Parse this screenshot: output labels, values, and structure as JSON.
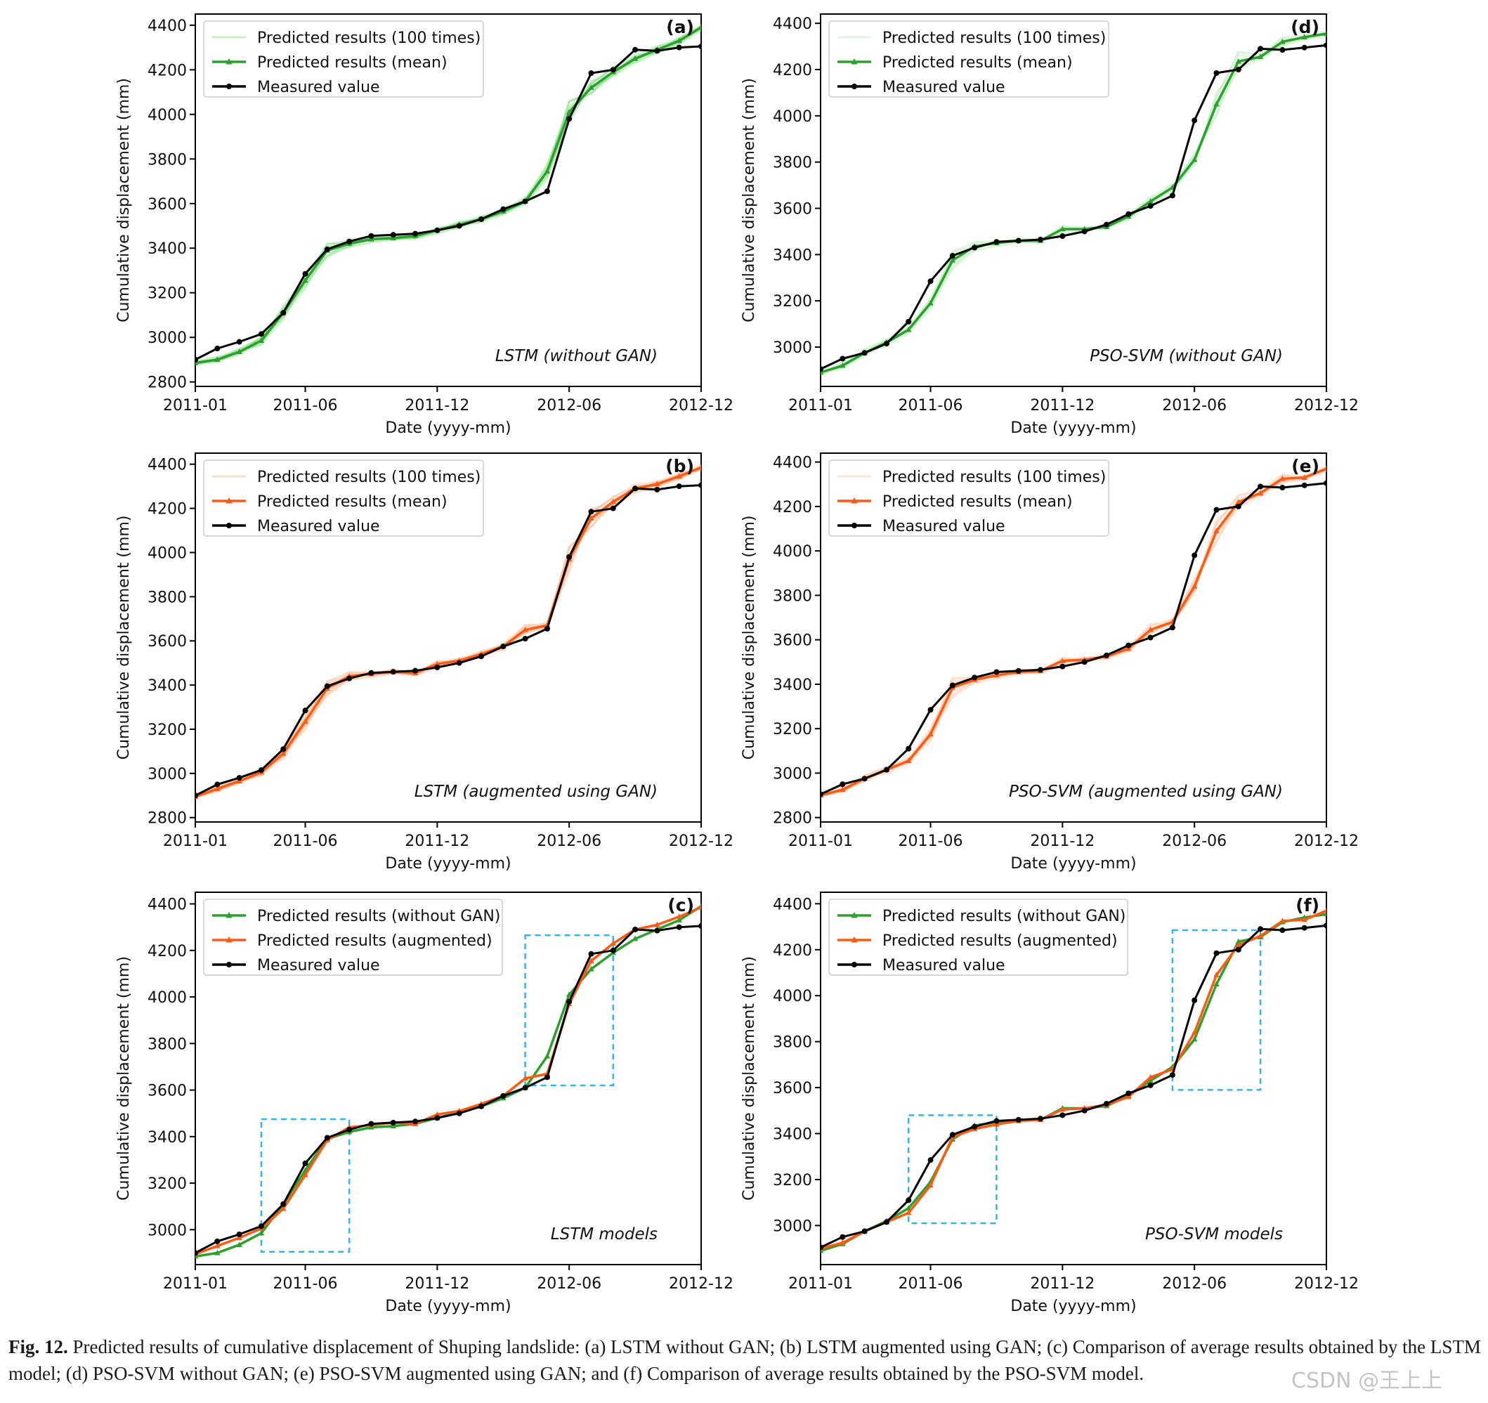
{
  "chart_data": [
    {
      "id": "a",
      "type": "line",
      "panel_label": "(a)",
      "title": "",
      "annotation": "LSTM (without GAN)",
      "xlabel": "Date (yyyy-mm)",
      "ylabel": "Cumulative displacement (mm)",
      "ylim": [
        2780,
        4450
      ],
      "yticks": [
        "2800",
        "3000",
        "3200",
        "3400",
        "3600",
        "3800",
        "4000",
        "4200",
        "4400"
      ],
      "xticks": [
        "2011-01",
        "2011-06",
        "2011-12",
        "2012-06",
        "2012-12"
      ],
      "x": [
        "2011-01",
        "2011-02",
        "2011-03",
        "2011-04",
        "2011-05",
        "2011-06",
        "2011-07",
        "2011-08",
        "2011-09",
        "2011-10",
        "2011-11",
        "2011-12",
        "2012-01",
        "2012-02",
        "2012-03",
        "2012-04",
        "2012-05",
        "2012-06",
        "2012-07",
        "2012-08",
        "2012-09",
        "2012-10",
        "2012-11",
        "2012-12"
      ],
      "legend_position": "top-left",
      "legend": [
        "Predicted results (100 times)",
        "Predicted results (mean)",
        "Measured value"
      ],
      "series": [
        {
          "name": "Predicted results (100 times)",
          "color": "#7ee07e",
          "values": [
            2885,
            2900,
            2935,
            2985,
            3110,
            3255,
            3390,
            3420,
            3440,
            3445,
            3455,
            3480,
            3505,
            3530,
            3565,
            3610,
            3745,
            4010,
            4120,
            4190,
            4250,
            4290,
            4330,
            4390
          ]
        },
        {
          "name": "Predicted results (mean)",
          "color": "#2ca02c",
          "values": [
            2885,
            2900,
            2935,
            2985,
            3110,
            3255,
            3390,
            3420,
            3440,
            3445,
            3455,
            3480,
            3505,
            3530,
            3565,
            3610,
            3745,
            4010,
            4120,
            4190,
            4250,
            4290,
            4330,
            4390
          ]
        },
        {
          "name": "Measured value",
          "color": "#000000",
          "values": [
            2900,
            2950,
            2980,
            3015,
            3110,
            3285,
            3395,
            3430,
            3455,
            3460,
            3465,
            3480,
            3500,
            3530,
            3575,
            3610,
            3655,
            3980,
            4185,
            4200,
            4290,
            4285,
            4300,
            4305
          ]
        }
      ]
    },
    {
      "id": "b",
      "type": "line",
      "panel_label": "(b)",
      "title": "",
      "annotation": "LSTM (augmented using GAN)",
      "xlabel": "Date (yyyy-mm)",
      "ylabel": "Cumulative displacement (mm)",
      "ylim": [
        2780,
        4450
      ],
      "yticks": [
        "2800",
        "3000",
        "3200",
        "3400",
        "3600",
        "3800",
        "4000",
        "4200",
        "4400"
      ],
      "xticks": [
        "2011-01",
        "2011-06",
        "2011-12",
        "2012-06",
        "2012-12"
      ],
      "x": [
        "2011-01",
        "2011-02",
        "2011-03",
        "2011-04",
        "2011-05",
        "2011-06",
        "2011-07",
        "2011-08",
        "2011-09",
        "2011-10",
        "2011-11",
        "2011-12",
        "2012-01",
        "2012-02",
        "2012-03",
        "2012-04",
        "2012-05",
        "2012-06",
        "2012-07",
        "2012-08",
        "2012-09",
        "2012-10",
        "2012-11",
        "2012-12"
      ],
      "legend_position": "top-left",
      "legend": [
        "Predicted results (100 times)",
        "Predicted results (mean)",
        "Measured value"
      ],
      "series": [
        {
          "name": "Predicted results (100 times)",
          "color": "#ffb38a",
          "values": [
            2895,
            2930,
            2965,
            3005,
            3090,
            3235,
            3385,
            3440,
            3450,
            3460,
            3455,
            3495,
            3510,
            3540,
            3575,
            3650,
            3670,
            3970,
            4155,
            4230,
            4290,
            4310,
            4345,
            4385
          ]
        },
        {
          "name": "Predicted results (mean)",
          "color": "#ff5a14",
          "values": [
            2895,
            2930,
            2965,
            3005,
            3090,
            3235,
            3385,
            3440,
            3450,
            3460,
            3455,
            3495,
            3510,
            3540,
            3575,
            3650,
            3670,
            3970,
            4155,
            4230,
            4290,
            4310,
            4345,
            4385
          ]
        },
        {
          "name": "Measured value",
          "color": "#000000",
          "values": [
            2900,
            2950,
            2980,
            3015,
            3110,
            3285,
            3395,
            3430,
            3455,
            3460,
            3465,
            3480,
            3500,
            3530,
            3575,
            3610,
            3655,
            3980,
            4185,
            4200,
            4290,
            4285,
            4300,
            4305
          ]
        }
      ]
    },
    {
      "id": "c",
      "type": "line",
      "panel_label": "(c)",
      "title": "",
      "annotation": "LSTM models",
      "xlabel": "Date (yyyy-mm)",
      "ylabel": "Cumulative displacement (mm)",
      "ylim": [
        2850,
        4450
      ],
      "yticks": [
        "3000",
        "3200",
        "3400",
        "3600",
        "3800",
        "4000",
        "4200",
        "4400"
      ],
      "xticks": [
        "2011-01",
        "2011-06",
        "2011-12",
        "2012-06",
        "2012-12"
      ],
      "x": [
        "2011-01",
        "2011-02",
        "2011-03",
        "2011-04",
        "2011-05",
        "2011-06",
        "2011-07",
        "2011-08",
        "2011-09",
        "2011-10",
        "2011-11",
        "2011-12",
        "2012-01",
        "2012-02",
        "2012-03",
        "2012-04",
        "2012-05",
        "2012-06",
        "2012-07",
        "2012-08",
        "2012-09",
        "2012-10",
        "2012-11",
        "2012-12"
      ],
      "legend_position": "top-left",
      "legend": [
        "Predicted results (without GAN)",
        "Predicted results (augmented)",
        "Measured value"
      ],
      "highlight_boxes": [
        {
          "x_from": "2011-04",
          "x_to": "2011-08",
          "y_from": 2905,
          "y_to": 3475
        },
        {
          "x_from": "2012-04",
          "x_to": "2012-08",
          "y_from": 3620,
          "y_to": 4265
        }
      ],
      "series": [
        {
          "name": "Predicted results (without GAN)",
          "color": "#2ca02c",
          "values": [
            2885,
            2900,
            2935,
            2985,
            3110,
            3255,
            3390,
            3420,
            3440,
            3445,
            3455,
            3480,
            3505,
            3530,
            3565,
            3610,
            3745,
            4010,
            4120,
            4190,
            4250,
            4290,
            4330,
            4390
          ]
        },
        {
          "name": "Predicted results (augmented)",
          "color": "#ff5a14",
          "values": [
            2895,
            2930,
            2965,
            3005,
            3090,
            3235,
            3385,
            3440,
            3450,
            3460,
            3455,
            3495,
            3510,
            3540,
            3575,
            3650,
            3670,
            3970,
            4155,
            4230,
            4290,
            4310,
            4345,
            4385
          ]
        },
        {
          "name": "Measured value",
          "color": "#000000",
          "values": [
            2900,
            2950,
            2980,
            3015,
            3110,
            3285,
            3395,
            3430,
            3455,
            3460,
            3465,
            3480,
            3500,
            3530,
            3575,
            3610,
            3655,
            3980,
            4185,
            4200,
            4290,
            4285,
            4300,
            4305
          ]
        }
      ]
    },
    {
      "id": "d",
      "type": "line",
      "panel_label": "(d)",
      "title": "",
      "annotation": "PSO-SVM (without GAN)",
      "xlabel": "Date (yyyy-mm)",
      "ylabel": "Cumulative displacement (mm)",
      "ylim": [
        2830,
        4440
      ],
      "yticks": [
        "3000",
        "3200",
        "3400",
        "3600",
        "3800",
        "4000",
        "4200",
        "4400"
      ],
      "xticks": [
        "2011-01",
        "2011-06",
        "2011-12",
        "2012-06",
        "2012-12"
      ],
      "x": [
        "2011-01",
        "2011-02",
        "2011-03",
        "2011-04",
        "2011-05",
        "2011-06",
        "2011-07",
        "2011-08",
        "2011-09",
        "2011-10",
        "2011-11",
        "2011-12",
        "2012-01",
        "2012-02",
        "2012-03",
        "2012-04",
        "2012-05",
        "2012-06",
        "2012-07",
        "2012-08",
        "2012-09",
        "2012-10",
        "2012-11",
        "2012-12"
      ],
      "legend_position": "top-left",
      "legend": [
        "Predicted results (100 times)",
        "Predicted results (mean)",
        "Measured value"
      ],
      "series": [
        {
          "name": "Predicted results (100 times)",
          "color": "#b9ecb9",
          "values": [
            2890,
            2920,
            2975,
            3020,
            3075,
            3190,
            3375,
            3435,
            3450,
            3460,
            3460,
            3510,
            3510,
            3520,
            3565,
            3630,
            3690,
            3810,
            4050,
            4235,
            4255,
            4320,
            4340,
            4355
          ]
        },
        {
          "name": "Predicted results (mean)",
          "color": "#2ca02c",
          "values": [
            2890,
            2920,
            2975,
            3020,
            3075,
            3190,
            3375,
            3435,
            3450,
            3460,
            3460,
            3510,
            3510,
            3520,
            3565,
            3630,
            3690,
            3810,
            4050,
            4235,
            4255,
            4320,
            4340,
            4355
          ]
        },
        {
          "name": "Measured value",
          "color": "#000000",
          "values": [
            2905,
            2950,
            2975,
            3015,
            3110,
            3285,
            3395,
            3430,
            3455,
            3460,
            3465,
            3480,
            3500,
            3530,
            3575,
            3610,
            3655,
            3980,
            4185,
            4200,
            4290,
            4285,
            4295,
            4305
          ]
        }
      ]
    },
    {
      "id": "e",
      "type": "line",
      "panel_label": "(e)",
      "title": "",
      "annotation": "PSO-SVM (augmented using GAN)",
      "xlabel": "Date (yyyy-mm)",
      "ylabel": "Cumulative displacement (mm)",
      "ylim": [
        2780,
        4440
      ],
      "yticks": [
        "2800",
        "3000",
        "3200",
        "3400",
        "3600",
        "3800",
        "4000",
        "4200",
        "4400"
      ],
      "xticks": [
        "2011-01",
        "2011-06",
        "2011-12",
        "2012-06",
        "2012-12"
      ],
      "x": [
        "2011-01",
        "2011-02",
        "2011-03",
        "2011-04",
        "2011-05",
        "2011-06",
        "2011-07",
        "2011-08",
        "2011-09",
        "2011-10",
        "2011-11",
        "2011-12",
        "2012-01",
        "2012-02",
        "2012-03",
        "2012-04",
        "2012-05",
        "2012-06",
        "2012-07",
        "2012-08",
        "2012-09",
        "2012-10",
        "2012-11",
        "2012-12"
      ],
      "legend_position": "top-left",
      "legend": [
        "Predicted results (100 times)",
        "Predicted results (mean)",
        "Measured value"
      ],
      "series": [
        {
          "name": "Predicted results (100 times)",
          "color": "#ffc6a4",
          "values": [
            2900,
            2925,
            2975,
            3015,
            3055,
            3175,
            3385,
            3420,
            3440,
            3455,
            3460,
            3505,
            3510,
            3525,
            3560,
            3645,
            3680,
            3840,
            4090,
            4220,
            4260,
            4325,
            4330,
            4370
          ]
        },
        {
          "name": "Predicted results (mean)",
          "color": "#ff5a14",
          "values": [
            2900,
            2925,
            2975,
            3015,
            3055,
            3175,
            3385,
            3420,
            3440,
            3455,
            3460,
            3505,
            3510,
            3525,
            3560,
            3645,
            3680,
            3840,
            4090,
            4220,
            4260,
            4325,
            4330,
            4370
          ]
        },
        {
          "name": "Measured value",
          "color": "#000000",
          "values": [
            2905,
            2950,
            2975,
            3015,
            3110,
            3285,
            3395,
            3430,
            3455,
            3460,
            3465,
            3480,
            3500,
            3530,
            3575,
            3610,
            3655,
            3980,
            4185,
            4200,
            4290,
            4285,
            4295,
            4305
          ]
        }
      ]
    },
    {
      "id": "f",
      "type": "line",
      "panel_label": "(f)",
      "title": "",
      "annotation": "PSO-SVM models",
      "xlabel": "Date (yyyy-mm)",
      "ylabel": "Cumulative displacement (mm)",
      "ylim": [
        2830,
        4450
      ],
      "yticks": [
        "3000",
        "3200",
        "3400",
        "3600",
        "3800",
        "4000",
        "4200",
        "4400"
      ],
      "xticks": [
        "2011-01",
        "2011-06",
        "2011-12",
        "2012-06",
        "2012-12"
      ],
      "x": [
        "2011-01",
        "2011-02",
        "2011-03",
        "2011-04",
        "2011-05",
        "2011-06",
        "2011-07",
        "2011-08",
        "2011-09",
        "2011-10",
        "2011-11",
        "2011-12",
        "2012-01",
        "2012-02",
        "2012-03",
        "2012-04",
        "2012-05",
        "2012-06",
        "2012-07",
        "2012-08",
        "2012-09",
        "2012-10",
        "2012-11",
        "2012-12"
      ],
      "legend_position": "top-left",
      "legend": [
        "Predicted results (without GAN)",
        "Predicted results (augmented)",
        "Measured value"
      ],
      "highlight_boxes": [
        {
          "x_from": "2011-05",
          "x_to": "2011-09",
          "y_from": 3010,
          "y_to": 3480
        },
        {
          "x_from": "2012-05",
          "x_to": "2012-09",
          "y_from": 3590,
          "y_to": 4285
        }
      ],
      "series": [
        {
          "name": "Predicted results (without GAN)",
          "color": "#2ca02c",
          "values": [
            2890,
            2920,
            2975,
            3020,
            3075,
            3190,
            3375,
            3435,
            3450,
            3460,
            3460,
            3510,
            3510,
            3520,
            3565,
            3630,
            3690,
            3810,
            4050,
            4235,
            4255,
            4320,
            4340,
            4355
          ]
        },
        {
          "name": "Predicted results (augmented)",
          "color": "#ff5a14",
          "values": [
            2900,
            2925,
            2975,
            3015,
            3055,
            3175,
            3385,
            3420,
            3440,
            3455,
            3460,
            3505,
            3510,
            3525,
            3560,
            3645,
            3680,
            3840,
            4090,
            4220,
            4260,
            4325,
            4330,
            4370
          ]
        },
        {
          "name": "Measured value",
          "color": "#000000",
          "values": [
            2905,
            2950,
            2975,
            3015,
            3110,
            3285,
            3395,
            3430,
            3455,
            3460,
            3465,
            3480,
            3500,
            3530,
            3575,
            3610,
            3655,
            3980,
            4185,
            4200,
            4290,
            4285,
            4295,
            4305
          ]
        }
      ]
    }
  ],
  "caption": {
    "label": "Fig. 12.",
    "text": "Predicted results of cumulative displacement of Shuping landslide: (a) LSTM without GAN; (b) LSTM augmented using GAN; (c) Comparison of average results obtained by the LSTM model; (d) PSO-SVM without GAN; (e) PSO-SVM augmented using GAN; and (f) Comparison of average results obtained by the PSO-SVM model."
  },
  "watermark": "CSDN @王上上",
  "colors": {
    "green": "#2ca02c",
    "orange": "#ff5a14",
    "measured": "#000000",
    "highlight_box": "#35b4e6"
  }
}
